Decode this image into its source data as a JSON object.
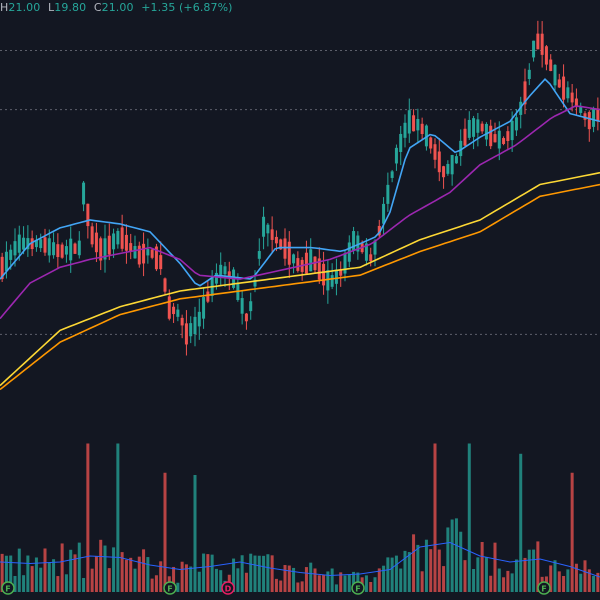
{
  "header": {
    "high_label": "H",
    "high_value": "21.00",
    "low_label": "L",
    "low_value": "19.80",
    "close_label": "C",
    "close_value": "21.00",
    "change": "+1.35 (+6.87%)"
  },
  "colors": {
    "background": "#131722",
    "up": "#26a69a",
    "down": "#ef5350",
    "ma_blue": "#42a5f5",
    "ma_purple": "#9c27b0",
    "ma_yellow": "#fdd835",
    "ma_orange": "#ff9800",
    "volume_ma": "#2962ff",
    "gridline": "#5d606b"
  },
  "event_markers": [
    {
      "letter": "F",
      "kind": "financials"
    },
    {
      "letter": "F",
      "kind": "financials"
    },
    {
      "letter": "D",
      "kind": "dividend"
    },
    {
      "letter": "F",
      "kind": "financials"
    },
    {
      "letter": "F",
      "kind": "financials"
    }
  ],
  "chart_data": {
    "type": "candlestick",
    "title": "",
    "price_ylim": [
      11.2,
      21.6
    ],
    "reference_levels": [
      20.7,
      19.2,
      13.5
    ],
    "moving_averages": [
      {
        "color": "blue",
        "points": [
          [
            0,
            14.9
          ],
          [
            0.05,
            15.8
          ],
          [
            0.1,
            16.2
          ],
          [
            0.15,
            16.4
          ],
          [
            0.2,
            16.3
          ],
          [
            0.25,
            16.1
          ],
          [
            0.3,
            15.3
          ],
          [
            0.33,
            14.7
          ],
          [
            0.36,
            15.0
          ],
          [
            0.42,
            14.9
          ],
          [
            0.46,
            15.7
          ],
          [
            0.52,
            15.7
          ],
          [
            0.57,
            15.6
          ],
          [
            0.63,
            16.0
          ],
          [
            0.65,
            16.6
          ],
          [
            0.68,
            18.2
          ],
          [
            0.72,
            18.6
          ],
          [
            0.76,
            18.1
          ],
          [
            0.8,
            18.5
          ],
          [
            0.85,
            18.9
          ],
          [
            0.88,
            19.5
          ],
          [
            0.91,
            20.0
          ],
          [
            0.95,
            19.1
          ],
          [
            1,
            18.9
          ]
        ]
      },
      {
        "color": "purple",
        "points": [
          [
            0,
            13.9
          ],
          [
            0.05,
            14.8
          ],
          [
            0.1,
            15.2
          ],
          [
            0.15,
            15.4
          ],
          [
            0.25,
            15.7
          ],
          [
            0.3,
            15.4
          ],
          [
            0.33,
            15.0
          ],
          [
            0.4,
            14.9
          ],
          [
            0.46,
            15.1
          ],
          [
            0.55,
            15.4
          ],
          [
            0.62,
            15.8
          ],
          [
            0.68,
            16.5
          ],
          [
            0.75,
            17.1
          ],
          [
            0.8,
            17.8
          ],
          [
            0.86,
            18.3
          ],
          [
            0.92,
            19.0
          ],
          [
            0.96,
            19.3
          ],
          [
            1,
            19.2
          ]
        ]
      },
      {
        "color": "yellow",
        "points": [
          [
            0,
            12.2
          ],
          [
            0.1,
            13.6
          ],
          [
            0.2,
            14.2
          ],
          [
            0.3,
            14.6
          ],
          [
            0.4,
            14.8
          ],
          [
            0.5,
            15.0
          ],
          [
            0.6,
            15.2
          ],
          [
            0.7,
            15.9
          ],
          [
            0.8,
            16.4
          ],
          [
            0.9,
            17.3
          ],
          [
            1,
            17.6
          ]
        ]
      },
      {
        "color": "orange",
        "points": [
          [
            0,
            12.1
          ],
          [
            0.1,
            13.3
          ],
          [
            0.2,
            14.0
          ],
          [
            0.3,
            14.4
          ],
          [
            0.4,
            14.6
          ],
          [
            0.5,
            14.8
          ],
          [
            0.6,
            15.0
          ],
          [
            0.7,
            15.6
          ],
          [
            0.8,
            16.1
          ],
          [
            0.9,
            17.0
          ],
          [
            1,
            17.3
          ]
        ]
      }
    ],
    "volume_ma_points": [
      [
        0,
        0.2
      ],
      [
        0.05,
        0.19
      ],
      [
        0.1,
        0.2
      ],
      [
        0.15,
        0.24
      ],
      [
        0.2,
        0.23
      ],
      [
        0.25,
        0.18
      ],
      [
        0.3,
        0.15
      ],
      [
        0.35,
        0.17
      ],
      [
        0.4,
        0.2
      ],
      [
        0.45,
        0.16
      ],
      [
        0.5,
        0.13
      ],
      [
        0.55,
        0.11
      ],
      [
        0.6,
        0.12
      ],
      [
        0.65,
        0.15
      ],
      [
        0.7,
        0.3
      ],
      [
        0.75,
        0.33
      ],
      [
        0.8,
        0.24
      ],
      [
        0.85,
        0.2
      ],
      [
        0.9,
        0.22
      ],
      [
        0.95,
        0.17
      ],
      [
        1,
        0.1
      ]
    ],
    "price_path": [
      [
        0,
        15.1
      ],
      [
        0.03,
        15.8
      ],
      [
        0.07,
        15.8
      ],
      [
        0.1,
        15.6
      ],
      [
        0.135,
        15.7
      ],
      [
        0.14,
        17.3
      ],
      [
        0.15,
        16.1
      ],
      [
        0.17,
        15.6
      ],
      [
        0.2,
        16.0
      ],
      [
        0.23,
        15.5
      ],
      [
        0.25,
        15.6
      ],
      [
        0.27,
        15.3
      ],
      [
        0.28,
        14.2
      ],
      [
        0.3,
        14.0
      ],
      [
        0.31,
        13.5
      ],
      [
        0.33,
        13.8
      ],
      [
        0.35,
        14.6
      ],
      [
        0.37,
        15.2
      ],
      [
        0.39,
        14.9
      ],
      [
        0.41,
        13.9
      ],
      [
        0.42,
        14.3
      ],
      [
        0.44,
        16.3
      ],
      [
        0.46,
        15.9
      ],
      [
        0.48,
        15.6
      ],
      [
        0.5,
        15.2
      ],
      [
        0.52,
        15.4
      ],
      [
        0.55,
        14.8
      ],
      [
        0.57,
        15.1
      ],
      [
        0.59,
        15.9
      ],
      [
        0.61,
        15.6
      ],
      [
        0.62,
        15.4
      ],
      [
        0.64,
        16.6
      ],
      [
        0.66,
        18.0
      ],
      [
        0.68,
        18.9
      ],
      [
        0.7,
        18.8
      ],
      [
        0.72,
        18.3
      ],
      [
        0.74,
        17.6
      ],
      [
        0.76,
        17.9
      ],
      [
        0.78,
        18.7
      ],
      [
        0.8,
        18.8
      ],
      [
        0.82,
        18.5
      ],
      [
        0.84,
        18.4
      ],
      [
        0.86,
        18.8
      ],
      [
        0.88,
        19.9
      ],
      [
        0.89,
        20.8
      ],
      [
        0.9,
        21.0
      ],
      [
        0.91,
        20.6
      ],
      [
        0.93,
        19.9
      ],
      [
        0.96,
        19.4
      ],
      [
        0.98,
        18.9
      ],
      [
        1,
        19.1
      ]
    ]
  }
}
